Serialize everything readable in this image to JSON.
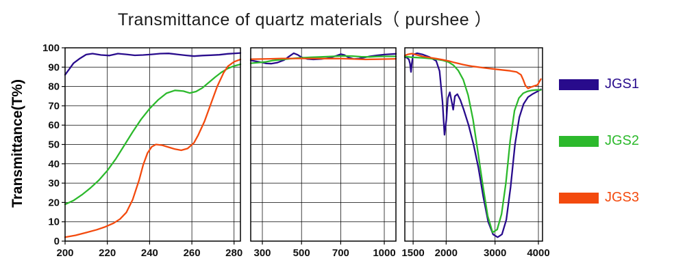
{
  "chart_data": {
    "type": "line",
    "title": "Transmittance of quartz materials（ purshee ）",
    "xlabel": "",
    "ylabel": "Transmittance(T%)",
    "ylim": [
      0,
      100
    ],
    "ytick_step": 10,
    "grid": true,
    "legend_position": "right",
    "panels": [
      {
        "xticks": [
          200,
          220,
          240,
          260,
          280
        ],
        "scale": [
          [
            200,
            0
          ],
          [
            283,
            1
          ]
        ]
      },
      {
        "xticks": [
          300,
          500,
          700,
          1000
        ],
        "scale": [
          [
            285,
            0
          ],
          [
            300,
            0.08
          ],
          [
            500,
            0.35
          ],
          [
            700,
            0.62
          ],
          [
            1000,
            0.92
          ],
          [
            1060,
            1
          ]
        ]
      },
      {
        "xticks": [
          1500,
          2000,
          3000,
          4000
        ],
        "scale": [
          [
            1150,
            0
          ],
          [
            1500,
            0.06
          ],
          [
            2000,
            0.3
          ],
          [
            3000,
            0.655
          ],
          [
            4000,
            0.97
          ],
          [
            4100,
            1
          ]
        ]
      }
    ],
    "series": [
      {
        "name": "JGS1",
        "color": "#280b8c",
        "data": [
          [
            [
              200,
              86
            ],
            [
              202,
              89
            ],
            [
              204,
              92
            ],
            [
              207,
              94.5
            ],
            [
              210,
              96.5
            ],
            [
              213,
              97
            ],
            [
              217,
              96.3
            ],
            [
              221,
              96
            ],
            [
              225,
              97
            ],
            [
              229,
              96.6
            ],
            [
              233,
              96.1
            ],
            [
              237,
              96.3
            ],
            [
              241,
              96.6
            ],
            [
              245,
              97
            ],
            [
              249,
              97.1
            ],
            [
              253,
              96.6
            ],
            [
              257,
              96.1
            ],
            [
              261,
              95.7
            ],
            [
              265,
              96
            ],
            [
              269,
              96.2
            ],
            [
              273,
              96.4
            ],
            [
              277,
              96.9
            ],
            [
              283,
              97.3
            ]
          ],
          [
            [
              285,
              93.5
            ],
            [
              300,
              92.4
            ],
            [
              320,
              91.9
            ],
            [
              345,
              91.8
            ],
            [
              375,
              92.3
            ],
            [
              410,
              93.6
            ],
            [
              440,
              95.8
            ],
            [
              460,
              97.2
            ],
            [
              480,
              96.4
            ],
            [
              500,
              95.1
            ],
            [
              530,
              94.2
            ],
            [
              560,
              94
            ],
            [
              600,
              94.2
            ],
            [
              640,
              94.7
            ],
            [
              675,
              95.8
            ],
            [
              700,
              96.7
            ],
            [
              725,
              96.3
            ],
            [
              755,
              94.9
            ],
            [
              790,
              94.2
            ],
            [
              825,
              94.4
            ],
            [
              860,
              95
            ],
            [
              900,
              95.6
            ],
            [
              950,
              96.1
            ],
            [
              1000,
              96.5
            ],
            [
              1060,
              96.9
            ]
          ],
          [
            [
              1150,
              95.2
            ],
            [
              1250,
              94.8
            ],
            [
              1320,
              94
            ],
            [
              1370,
              91.8
            ],
            [
              1410,
              87.5
            ],
            [
              1450,
              92
            ],
            [
              1500,
              96.5
            ],
            [
              1560,
              97.2
            ],
            [
              1650,
              96.5
            ],
            [
              1750,
              95.2
            ],
            [
              1850,
              93.2
            ],
            [
              1900,
              88
            ],
            [
              1945,
              72
            ],
            [
              1975,
              55
            ],
            [
              2005,
              63
            ],
            [
              2035,
              74
            ],
            [
              2075,
              77
            ],
            [
              2115,
              72
            ],
            [
              2145,
              68
            ],
            [
              2180,
              75
            ],
            [
              2230,
              76
            ],
            [
              2290,
              73
            ],
            [
              2360,
              68
            ],
            [
              2460,
              60
            ],
            [
              2560,
              50
            ],
            [
              2660,
              38
            ],
            [
              2760,
              23
            ],
            [
              2860,
              10
            ],
            [
              2960,
              3.5
            ],
            [
              3060,
              2
            ],
            [
              3160,
              3.5
            ],
            [
              3260,
              11
            ],
            [
              3360,
              28
            ],
            [
              3460,
              50
            ],
            [
              3560,
              64
            ],
            [
              3660,
              71
            ],
            [
              3760,
              74.5
            ],
            [
              3860,
              76
            ],
            [
              3960,
              77.2
            ],
            [
              4060,
              78.5
            ]
          ]
        ]
      },
      {
        "name": "JGS2",
        "color": "#2cb92c",
        "data": [
          [
            [
              200,
              19
            ],
            [
              204,
              21
            ],
            [
              208,
              24
            ],
            [
              212,
              27.5
            ],
            [
              216,
              31.5
            ],
            [
              220,
              36.5
            ],
            [
              224,
              42.5
            ],
            [
              228,
              49.5
            ],
            [
              232,
              56.5
            ],
            [
              236,
              63
            ],
            [
              240,
              68.5
            ],
            [
              244,
              73
            ],
            [
              248,
              76.5
            ],
            [
              252,
              78
            ],
            [
              256,
              77.6
            ],
            [
              259,
              76.6
            ],
            [
              262,
              77.4
            ],
            [
              265,
              79.3
            ],
            [
              268,
              82
            ],
            [
              271,
              84.8
            ],
            [
              274,
              87.3
            ],
            [
              277,
              89.3
            ],
            [
              280,
              90.6
            ],
            [
              283,
              91.5
            ]
          ],
          [
            [
              285,
              92
            ],
            [
              315,
              92.7
            ],
            [
              350,
              93.4
            ],
            [
              395,
              93.9
            ],
            [
              445,
              94.4
            ],
            [
              495,
              94.8
            ],
            [
              545,
              95.1
            ],
            [
              600,
              95.3
            ],
            [
              660,
              95.6
            ],
            [
              720,
              95.8
            ],
            [
              780,
              95.7
            ],
            [
              840,
              95.4
            ],
            [
              900,
              95.3
            ],
            [
              950,
              95.5
            ],
            [
              1000,
              95.6
            ],
            [
              1060,
              95.6
            ]
          ],
          [
            [
              1150,
              95.5
            ],
            [
              1300,
              95.3
            ],
            [
              1450,
              95.1
            ],
            [
              1550,
              95
            ],
            [
              1650,
              94.8
            ],
            [
              1750,
              94.5
            ],
            [
              1850,
              94.1
            ],
            [
              1950,
              93.5
            ],
            [
              2050,
              92.6
            ],
            [
              2150,
              91
            ],
            [
              2250,
              88.2
            ],
            [
              2350,
              83.5
            ],
            [
              2450,
              75.5
            ],
            [
              2550,
              63
            ],
            [
              2650,
              46
            ],
            [
              2750,
              29
            ],
            [
              2850,
              13
            ],
            [
              2950,
              4.5
            ],
            [
              3050,
              6
            ],
            [
              3150,
              14
            ],
            [
              3250,
              30
            ],
            [
              3350,
              52
            ],
            [
              3450,
              67.5
            ],
            [
              3550,
              74
            ],
            [
              3650,
              76.5
            ],
            [
              3750,
              77.5
            ],
            [
              3850,
              78
            ],
            [
              3950,
              78.2
            ],
            [
              4060,
              78.2
            ]
          ]
        ]
      },
      {
        "name": "JGS3",
        "color": "#f34a0e",
        "data": [
          [
            [
              200,
              2
            ],
            [
              205,
              3
            ],
            [
              210,
              4.4
            ],
            [
              215,
              5.9
            ],
            [
              219,
              7.4
            ],
            [
              223,
              9.3
            ],
            [
              226,
              11.4
            ],
            [
              229,
              14.8
            ],
            [
              232,
              21.5
            ],
            [
              235,
              31.5
            ],
            [
              237,
              39.5
            ],
            [
              239,
              45.5
            ],
            [
              241,
              48.8
            ],
            [
              243,
              50
            ],
            [
              246,
              49.6
            ],
            [
              249,
              48.6
            ],
            [
              252,
              47.6
            ],
            [
              255,
              47
            ],
            [
              258,
              47.9
            ],
            [
              261,
              50.8
            ],
            [
              263,
              54.8
            ],
            [
              266,
              62
            ],
            [
              269,
              71
            ],
            [
              272,
              80
            ],
            [
              275,
              87
            ],
            [
              277,
              90.4
            ],
            [
              280,
              92.8
            ],
            [
              283,
              94
            ]
          ],
          [
            [
              285,
              94.1
            ],
            [
              340,
              94.3
            ],
            [
              400,
              94.5
            ],
            [
              470,
              94.5
            ],
            [
              550,
              94.5
            ],
            [
              630,
              94.4
            ],
            [
              710,
              94.4
            ],
            [
              790,
              94.2
            ],
            [
              870,
              94
            ],
            [
              950,
              94.1
            ],
            [
              1020,
              94.2
            ],
            [
              1060,
              94.3
            ]
          ],
          [
            [
              1150,
              96
            ],
            [
              1250,
              96.5
            ],
            [
              1350,
              96.8
            ],
            [
              1450,
              97
            ],
            [
              1550,
              96.4
            ],
            [
              1650,
              95.5
            ],
            [
              1750,
              95
            ],
            [
              1850,
              94.4
            ],
            [
              1950,
              93.8
            ],
            [
              2050,
              93.2
            ],
            [
              2150,
              92.5
            ],
            [
              2250,
              91.9
            ],
            [
              2350,
              91.3
            ],
            [
              2450,
              90.8
            ],
            [
              2550,
              90.4
            ],
            [
              2750,
              89.7
            ],
            [
              2950,
              89.1
            ],
            [
              3150,
              88.6
            ],
            [
              3350,
              88.1
            ],
            [
              3500,
              87.5
            ],
            [
              3600,
              86
            ],
            [
              3650,
              83.5
            ],
            [
              3700,
              80.5
            ],
            [
              3760,
              79
            ],
            [
              3820,
              79.6
            ],
            [
              3900,
              80.2
            ],
            [
              3980,
              80.8
            ],
            [
              4060,
              83.8
            ]
          ]
        ]
      }
    ]
  }
}
